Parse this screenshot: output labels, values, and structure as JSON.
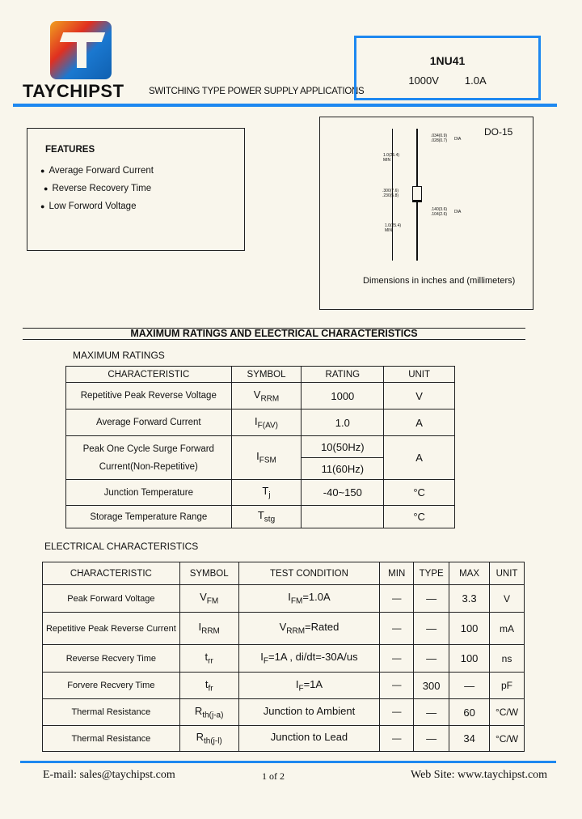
{
  "header": {
    "brand": "TAYCHIPST",
    "tagline": "SWITCHING TYPE POWER SUPPLY APPLICATIONS",
    "part_number": "1NU41",
    "voltage": "1000V",
    "current": "1.0A",
    "accent_color": "#1e88f0"
  },
  "features": {
    "title": "FEATURES",
    "items": [
      "Average Forward Current",
      "Reverse Recovery Time",
      "Low Forword Voltage"
    ]
  },
  "package": {
    "name": "DO-15",
    "lead_dia": [
      ".034(0.9)",
      ".028(0.7)",
      "DIA"
    ],
    "lead_len_top": [
      "1.0(25.4)",
      "MIN"
    ],
    "body_len": [
      ".300(7.6)",
      ".230(5.8)"
    ],
    "body_dia": [
      ".140(3.6)",
      ".104(2.6)",
      "DIA"
    ],
    "lead_len_bottom": [
      "1.0(25.4)",
      "MIN"
    ],
    "caption": "Dimensions in inches and (millimeters)"
  },
  "section_title": "MAXIMUM RATINGS AND ELECTRICAL CHARACTERISTICS",
  "max_ratings": {
    "title": "MAXIMUM RATINGS",
    "headers": [
      "CHARACTERISTIC",
      "SYMBOL",
      "RATING",
      "UNIT"
    ],
    "rows": [
      {
        "char": "Repetitive Peak Reverse Voltage",
        "sym": "V",
        "sub": "RRM",
        "rating": "1000",
        "unit": "V"
      },
      {
        "char": "Average Forward Current",
        "sym": "I",
        "sub": "F(AV)",
        "rating": "1.0",
        "unit": "A"
      },
      {
        "char": "Peak One Cycle Surge Forward",
        "char2": "Current(Non-Repetitive)",
        "sym": "I",
        "sub": "FSM",
        "rating": "10(50Hz)",
        "rating2": "11(60Hz)",
        "unit": "A"
      },
      {
        "char": "Junction Temperature",
        "sym": "T",
        "sub": "j",
        "rating": "-40~150",
        "unit": "°C"
      },
      {
        "char": "Storage Temperature Range",
        "sym": "T",
        "sub": "stg",
        "rating": "",
        "unit": "°C"
      }
    ]
  },
  "electrical": {
    "title": "ELECTRICAL  CHARACTERISTICS",
    "headers": [
      "CHARACTERISTIC",
      "SYMBOL",
      "TEST CONDITION",
      "MIN",
      "TYPE",
      "MAX",
      "UNIT"
    ],
    "rows": [
      {
        "char": "Peak Forward Voltage",
        "sym": "V",
        "sub": "FM",
        "cond": "I",
        "cond_sub": "FM",
        "cond_rest": "=1.0A",
        "min": "—",
        "type": "—",
        "max": "3.3",
        "unit": "V"
      },
      {
        "char": "Repetitive Peak Reverse Current",
        "sym": "I",
        "sub": "RRM",
        "cond": "V",
        "cond_sub": "RRM",
        "cond_rest": "=Rated",
        "min": "—",
        "type": "—",
        "max": "100",
        "unit": "mA"
      },
      {
        "char": "Reverse Recvery Time",
        "sym": "t",
        "sub": "rr",
        "cond": "I",
        "cond_sub": "F",
        "cond_rest": "=1A ,   di/dt=-30A/us",
        "min": "—",
        "type": "—",
        "max": "100",
        "unit": "ns"
      },
      {
        "char": "Forvere Recvery Time",
        "sym": "t",
        "sub": "fr",
        "cond": "I",
        "cond_sub": "F",
        "cond_rest": "=1A",
        "min": "—",
        "type": "300",
        "max": "—",
        "unit": "pF"
      },
      {
        "char": "Thermal Resistance",
        "sym": "R",
        "sub": "th(j-a)",
        "cond": "Junction to Ambient",
        "cond_sub": "",
        "cond_rest": "",
        "min": "—",
        "type": "—",
        "max": "60",
        "unit": "°C/W"
      },
      {
        "char": "Thermal Resistance",
        "sym": "R",
        "sub": "th(j-l)",
        "cond": "Junction to Lead",
        "cond_sub": "",
        "cond_rest": "",
        "min": "—",
        "type": "—",
        "max": "34",
        "unit": "°C/W"
      }
    ]
  },
  "footer": {
    "email": "E-mail: sales@taychipst.com",
    "page": "1  of  2",
    "website": "Web Site: www.taychipst.com"
  }
}
